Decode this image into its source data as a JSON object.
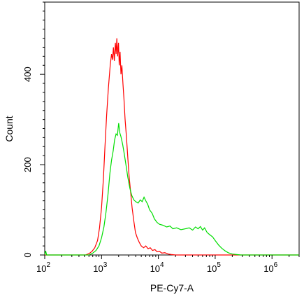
{
  "chart_data": {
    "type": "line",
    "title": "",
    "xlabel": "PE-Cy7-A",
    "ylabel": "Count",
    "x_scale": "log",
    "xlim": [
      100,
      3000000
    ],
    "ylim": [
      0,
      560
    ],
    "x_ticks": [
      {
        "value": 100,
        "base": "10",
        "exp": "2"
      },
      {
        "value": 1000,
        "base": "10",
        "exp": "3"
      },
      {
        "value": 10000,
        "base": "10",
        "exp": "4"
      },
      {
        "value": 100000,
        "base": "10",
        "exp": "5"
      },
      {
        "value": 1000000,
        "base": "10",
        "exp": "6"
      }
    ],
    "y_ticks": [
      {
        "value": 0,
        "label": "0"
      },
      {
        "value": 200,
        "label": "200"
      },
      {
        "value": 400,
        "label": "400"
      }
    ],
    "grid": false,
    "series": [
      {
        "color": "#ff0000",
        "points": [
          [
            100,
            0
          ],
          [
            520,
            0
          ],
          [
            600,
            3
          ],
          [
            680,
            8
          ],
          [
            760,
            16
          ],
          [
            850,
            32
          ],
          [
            920,
            60
          ],
          [
            1000,
            105
          ],
          [
            1080,
            170
          ],
          [
            1150,
            240
          ],
          [
            1230,
            310
          ],
          [
            1320,
            370
          ],
          [
            1420,
            420
          ],
          [
            1500,
            445
          ],
          [
            1560,
            432
          ],
          [
            1620,
            460
          ],
          [
            1680,
            430
          ],
          [
            1750,
            470
          ],
          [
            1800,
            445
          ],
          [
            1860,
            480
          ],
          [
            1920,
            440
          ],
          [
            1990,
            470
          ],
          [
            2050,
            420
          ],
          [
            2120,
            450
          ],
          [
            2200,
            400
          ],
          [
            2280,
            420
          ],
          [
            2380,
            380
          ],
          [
            2480,
            345
          ],
          [
            2600,
            300
          ],
          [
            2750,
            260
          ],
          [
            2900,
            215
          ],
          [
            3050,
            175
          ],
          [
            3250,
            140
          ],
          [
            3450,
            105
          ],
          [
            3700,
            75
          ],
          [
            3950,
            50
          ],
          [
            4250,
            38
          ],
          [
            4600,
            28
          ],
          [
            5000,
            20
          ],
          [
            5500,
            16
          ],
          [
            6000,
            20
          ],
          [
            6600,
            14
          ],
          [
            7200,
            16
          ],
          [
            7900,
            10
          ],
          [
            8700,
            12
          ],
          [
            9500,
            7
          ],
          [
            10500,
            8
          ],
          [
            11500,
            4
          ],
          [
            13000,
            5
          ],
          [
            15000,
            2
          ],
          [
            17000,
            1
          ],
          [
            20000,
            0
          ],
          [
            3000000,
            0
          ]
        ]
      },
      {
        "color": "#00dd00",
        "points": [
          [
            100,
            0
          ],
          [
            104,
            9
          ],
          [
            108,
            0
          ],
          [
            600,
            0
          ],
          [
            700,
            4
          ],
          [
            800,
            10
          ],
          [
            900,
            20
          ],
          [
            1000,
            38
          ],
          [
            1100,
            62
          ],
          [
            1200,
            95
          ],
          [
            1300,
            135
          ],
          [
            1400,
            180
          ],
          [
            1500,
            210
          ],
          [
            1600,
            230
          ],
          [
            1700,
            255
          ],
          [
            1800,
            268
          ],
          [
            1900,
            265
          ],
          [
            2000,
            292
          ],
          [
            2100,
            270
          ],
          [
            2200,
            262
          ],
          [
            2350,
            245
          ],
          [
            2500,
            225
          ],
          [
            2700,
            198
          ],
          [
            2900,
            172
          ],
          [
            3150,
            148
          ],
          [
            3400,
            132
          ],
          [
            3700,
            122
          ],
          [
            4000,
            118
          ],
          [
            4400,
            115
          ],
          [
            4800,
            122
          ],
          [
            5200,
            118
          ],
          [
            5600,
            128
          ],
          [
            6000,
            120
          ],
          [
            6500,
            112
          ],
          [
            7000,
            100
          ],
          [
            7800,
            92
          ],
          [
            8500,
            80
          ],
          [
            9500,
            72
          ],
          [
            10500,
            68
          ],
          [
            12000,
            66
          ],
          [
            14000,
            62
          ],
          [
            16000,
            64
          ],
          [
            18000,
            58
          ],
          [
            21000,
            60
          ],
          [
            25000,
            56
          ],
          [
            30000,
            58
          ],
          [
            35000,
            60
          ],
          [
            40000,
            55
          ],
          [
            45000,
            62
          ],
          [
            50000,
            58
          ],
          [
            55000,
            63
          ],
          [
            60000,
            55
          ],
          [
            65000,
            60
          ],
          [
            72000,
            50
          ],
          [
            80000,
            45
          ],
          [
            90000,
            40
          ],
          [
            100000,
            32
          ],
          [
            115000,
            22
          ],
          [
            130000,
            15
          ],
          [
            150000,
            9
          ],
          [
            170000,
            5
          ],
          [
            200000,
            2
          ],
          [
            240000,
            1
          ],
          [
            280000,
            0
          ],
          [
            3000000,
            0
          ]
        ]
      }
    ]
  }
}
